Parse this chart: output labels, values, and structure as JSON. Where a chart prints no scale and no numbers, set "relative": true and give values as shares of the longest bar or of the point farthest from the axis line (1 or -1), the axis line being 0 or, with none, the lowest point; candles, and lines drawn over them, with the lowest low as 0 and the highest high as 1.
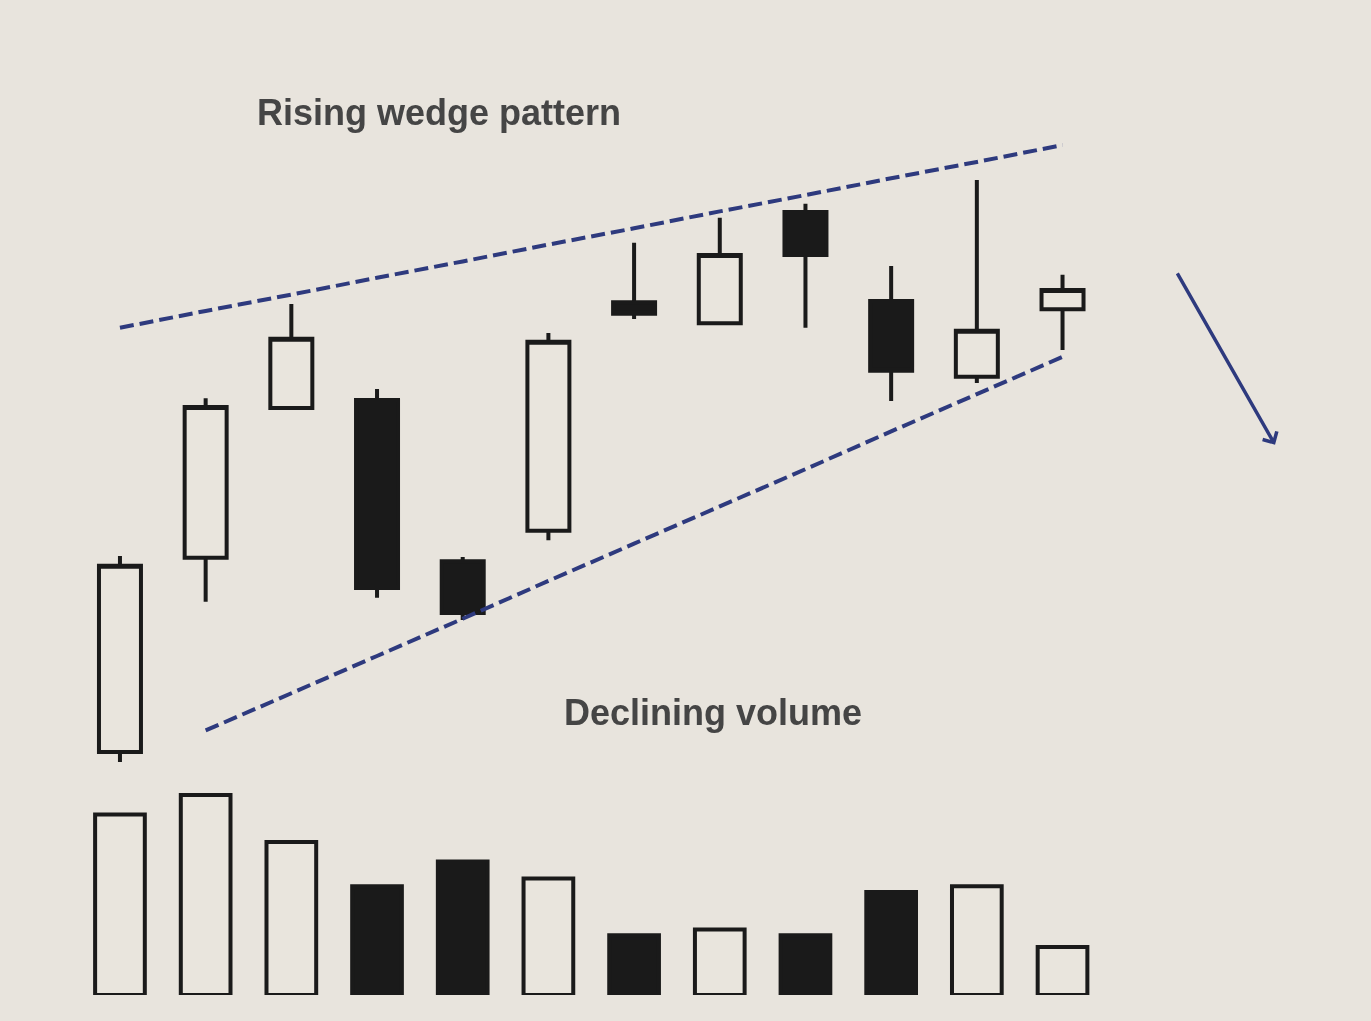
{
  "chart_data": [
    {
      "type": "candlestick",
      "title": "Rising wedge pattern",
      "relative": true,
      "line_style": "dashed",
      "categories": [
        null,
        null,
        null,
        null,
        null,
        null,
        null,
        null,
        null,
        null,
        null,
        null
      ],
      "ohlc": [
        [
          0.017,
          0.354,
          0,
          0.337
        ],
        [
          0.351,
          0.625,
          0.275,
          0.61
        ],
        [
          0.608,
          0.787,
          0.608,
          0.727
        ],
        [
          0.622,
          0.641,
          0.282,
          0.299
        ],
        [
          0.345,
          0.352,
          0.244,
          0.256
        ],
        [
          0.397,
          0.737,
          0.381,
          0.722
        ],
        [
          0.79,
          0.892,
          0.761,
          0.77
        ],
        [
          0.754,
          0.935,
          0.754,
          0.871
        ],
        [
          0.945,
          0.959,
          0.746,
          0.871
        ],
        [
          0.792,
          0.852,
          0.62,
          0.672
        ],
        [
          0.662,
          1,
          0.651,
          0.741
        ],
        [
          0.778,
          0.837,
          0.708,
          0.811
        ]
      ],
      "colors": [
        "#e9e5dd",
        "#e9e5dd",
        "#e9e5dd",
        "#1a1a1a",
        "#1a1a1a",
        "#e9e5dd",
        "#1a1a1a",
        "#e9e5dd",
        "#1a1a1a",
        "#1a1a1a",
        "#e9e5dd",
        "#e9e5dd"
      ],
      "series": [
        {
          "type": "line",
          "color": "#2e3a7e",
          "values": [
            0.746,
            0.775,
            0.803,
            0.832,
            0.86,
            0.889,
            0.917,
            0.946,
            0.974,
            1.003,
            1.031,
            1.06
          ]
        },
        {
          "type": "line",
          "color": "#2e3a7e",
          "values": [
            null,
            0.054,
            0.118,
            0.182,
            0.246,
            0.311,
            0.375,
            0.439,
            0.503,
            0.568,
            0.632,
            0.696
          ]
        }
      ]
    },
    {
      "type": "bar",
      "title": "Declining volume",
      "relative": true,
      "categories": [
        null,
        null,
        null,
        null,
        null,
        null,
        null,
        null,
        null,
        null,
        null,
        null
      ],
      "values": [
        0.902,
        1,
        0.765,
        0.544,
        0.667,
        0.583,
        0.299,
        0.328,
        0.299,
        0.515,
        0.544,
        0.24
      ],
      "colors": [
        "#e9e5dd",
        "#e9e5dd",
        "#e9e5dd",
        "#1a1a1a",
        "#1a1a1a",
        "#e9e5dd",
        "#1a1a1a",
        "#e9e5dd",
        "#1a1a1a",
        "#1a1a1a",
        "#e9e5dd",
        "#e9e5dd"
      ]
    }
  ]
}
